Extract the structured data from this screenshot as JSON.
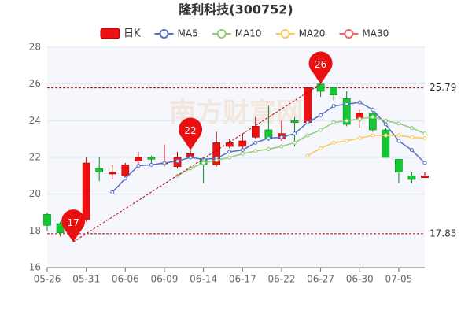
{
  "chart_data": {
    "type": "candlestick",
    "title": "隆利科技(300752)",
    "watermark": "南方财富网",
    "categories": [
      "05-26",
      null,
      null,
      "05-31",
      null,
      null,
      "06-06",
      null,
      null,
      "06-09",
      null,
      null,
      "06-14",
      null,
      null,
      "06-17",
      null,
      null,
      "06-22",
      null,
      null,
      "06-27",
      null,
      null,
      "06-30",
      null,
      null,
      "07-05",
      null,
      null
    ],
    "candles": {
      "name": "日K",
      "up_color": "#ee1111",
      "down_color": "#14c832",
      "open": [
        18.9,
        18.4,
        17.9,
        18.6,
        21.4,
        21.1,
        21.0,
        21.8,
        22.0,
        21.7,
        21.5,
        22.0,
        21.9,
        21.6,
        22.6,
        22.6,
        23.1,
        23.5,
        23.0,
        24.0,
        23.9,
        26.0,
        25.8,
        25.2,
        24.1,
        24.4,
        23.5,
        21.9,
        21.0,
        20.9
      ],
      "high": [
        19.0,
        18.5,
        18.2,
        22.0,
        22.0,
        21.6,
        21.7,
        22.3,
        22.1,
        22.7,
        22.3,
        22.4,
        22.0,
        23.4,
        23.0,
        23.3,
        24.2,
        24.8,
        24.0,
        24.2,
        25.8,
        26.0,
        25.8,
        25.6,
        24.6,
        24.7,
        23.6,
        21.9,
        21.2,
        21.2
      ],
      "low": [
        18.0,
        17.7,
        17.4,
        18.5,
        20.7,
        20.8,
        20.9,
        21.6,
        21.6,
        21.5,
        21.4,
        21.9,
        20.6,
        21.5,
        22.5,
        22.5,
        23.0,
        22.9,
        22.9,
        22.6,
        23.8,
        25.3,
        25.1,
        23.7,
        23.6,
        23.4,
        22.0,
        20.6,
        20.6,
        20.9
      ],
      "close": [
        18.3,
        17.9,
        18.0,
        21.7,
        21.2,
        21.2,
        21.6,
        22.0,
        21.9,
        21.7,
        22.0,
        22.2,
        21.6,
        22.8,
        22.8,
        22.9,
        23.7,
        23.0,
        23.3,
        23.9,
        25.8,
        25.6,
        25.4,
        23.8,
        24.4,
        23.5,
        22.0,
        21.2,
        20.8,
        21.0
      ]
    },
    "series": [
      {
        "name": "MA5",
        "color": "#5470c6",
        "values": [
          null,
          null,
          null,
          null,
          null,
          20.1,
          20.85,
          21.55,
          21.6,
          21.7,
          21.8,
          22.0,
          21.9,
          21.95,
          22.3,
          22.4,
          22.8,
          23.05,
          23.1,
          23.3,
          23.9,
          24.3,
          24.8,
          24.9,
          25.0,
          24.6,
          23.8,
          22.9,
          22.4,
          21.7
        ]
      },
      {
        "name": "MA10",
        "color": "#91cc75",
        "values": [
          null,
          null,
          null,
          null,
          null,
          null,
          null,
          null,
          null,
          null,
          21.0,
          21.4,
          21.7,
          21.85,
          22.0,
          22.2,
          22.35,
          22.45,
          22.6,
          22.8,
          23.2,
          23.5,
          23.9,
          24.0,
          24.1,
          24.2,
          24.0,
          23.85,
          23.6,
          23.3
        ]
      },
      {
        "name": "MA20",
        "color": "#fac858",
        "values": [
          null,
          null,
          null,
          null,
          null,
          null,
          null,
          null,
          null,
          null,
          null,
          null,
          null,
          null,
          null,
          null,
          null,
          null,
          null,
          null,
          22.1,
          22.5,
          22.8,
          22.9,
          23.05,
          23.2,
          23.2,
          23.2,
          23.1,
          23.05
        ]
      },
      {
        "name": "MA30",
        "color": "#ee6666",
        "values": [
          null,
          null,
          null,
          null,
          null,
          null,
          null,
          null,
          null,
          null,
          null,
          null,
          null,
          null,
          null,
          null,
          null,
          null,
          null,
          null,
          null,
          null,
          null,
          null,
          null,
          null,
          null,
          null,
          null,
          null
        ]
      }
    ],
    "markers": [
      {
        "index": 21,
        "value": 26
      },
      {
        "index": 2,
        "value": 17
      },
      {
        "index": 11,
        "value": 22
      }
    ],
    "ref_lines": [
      25.79,
      17.85
    ],
    "ylim": [
      16,
      28
    ],
    "yticks": [
      16,
      18,
      20,
      22,
      24,
      26,
      28
    ],
    "grid": true
  }
}
